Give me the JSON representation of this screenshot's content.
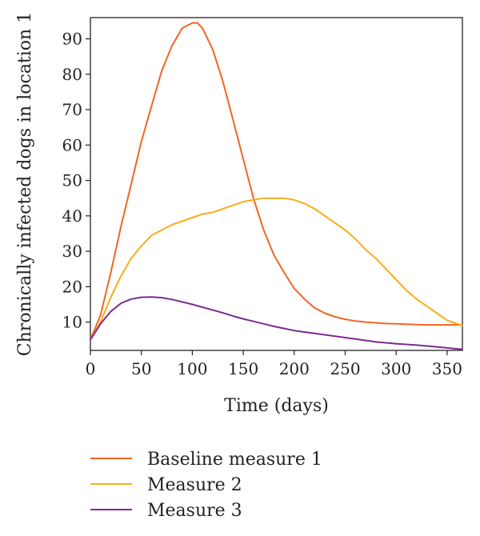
{
  "chart_data": {
    "type": "line",
    "xlabel": "Time (days)",
    "ylabel": "Chronically infected dogs in location 1",
    "xlim": [
      0,
      365
    ],
    "ylim": [
      2,
      96
    ],
    "xticks": [
      0,
      50,
      100,
      150,
      200,
      250,
      300,
      350
    ],
    "yticks": [
      10,
      20,
      30,
      40,
      50,
      60,
      70,
      80,
      90
    ],
    "grid": false,
    "legend_position": "bottom",
    "series": [
      {
        "name": "Baseline measure 1",
        "color": "#f26522",
        "x": [
          0,
          10,
          20,
          30,
          40,
          50,
          60,
          70,
          80,
          90,
          100,
          105,
          110,
          120,
          130,
          140,
          150,
          160,
          170,
          180,
          190,
          200,
          210,
          220,
          230,
          240,
          250,
          260,
          270,
          280,
          290,
          300,
          310,
          320,
          330,
          340,
          350,
          365
        ],
        "y": [
          5,
          12,
          24,
          37,
          49,
          61,
          71,
          81,
          88,
          93,
          94.5,
          94.5,
          93,
          87,
          78,
          67,
          56,
          45,
          36,
          29,
          24,
          19.5,
          16.5,
          14,
          12.5,
          11.5,
          10.8,
          10.3,
          10,
          9.8,
          9.6,
          9.5,
          9.4,
          9.3,
          9.2,
          9.2,
          9.2,
          9.2
        ]
      },
      {
        "name": "Measure 2",
        "color": "#fbac18",
        "x": [
          0,
          10,
          20,
          30,
          40,
          50,
          60,
          70,
          80,
          90,
          100,
          110,
          120,
          130,
          140,
          150,
          160,
          170,
          180,
          190,
          200,
          210,
          220,
          230,
          240,
          250,
          260,
          270,
          280,
          290,
          300,
          310,
          320,
          330,
          340,
          350,
          365
        ],
        "y": [
          5,
          10,
          17,
          23,
          28,
          31.5,
          34.5,
          36,
          37.5,
          38.5,
          39.5,
          40.5,
          41,
          42,
          43,
          44,
          44.5,
          45,
          45,
          45,
          44.5,
          43.5,
          42,
          40,
          38,
          36,
          33.5,
          30.5,
          28,
          25,
          22,
          19,
          16.5,
          14.5,
          12.5,
          10.5,
          9
        ]
      },
      {
        "name": "Measure 3",
        "color": "#7b2d8e",
        "x": [
          0,
          10,
          20,
          30,
          40,
          50,
          60,
          70,
          80,
          90,
          100,
          110,
          120,
          130,
          140,
          150,
          160,
          170,
          180,
          190,
          200,
          220,
          240,
          260,
          280,
          300,
          320,
          340,
          365
        ],
        "y": [
          5,
          9.5,
          13,
          15.3,
          16.5,
          17,
          17.1,
          16.9,
          16.4,
          15.7,
          15,
          14.2,
          13.4,
          12.6,
          11.7,
          10.9,
          10.2,
          9.5,
          8.8,
          8.2,
          7.6,
          6.8,
          6,
          5.2,
          4.4,
          3.9,
          3.5,
          3,
          2.3
        ]
      }
    ]
  }
}
